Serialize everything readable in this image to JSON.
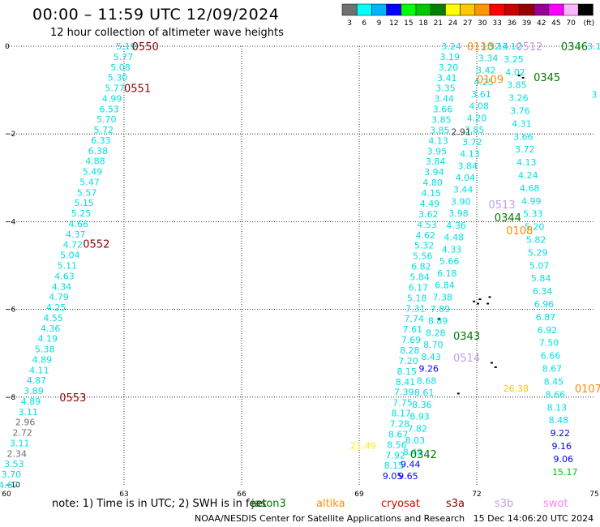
{
  "header": {
    "title": "00:00 – 11:59 UTC 12/09/2024",
    "subtitle": "12 hour collection of altimeter wave heights"
  },
  "legend": {
    "colors": [
      "#707070",
      "#00ffff",
      "#00b4ff",
      "#0000ff",
      "#00ff00",
      "#00c800",
      "#008000",
      "#ffff00",
      "#ffc800",
      "#ff9600",
      "#ff0000",
      "#c80000",
      "#960000",
      "#960096",
      "#ff00ff",
      "#ffb4ff",
      "#000000"
    ],
    "labels": [
      "3",
      "6",
      "9",
      "12",
      "15",
      "18",
      "21",
      "24",
      "27",
      "30",
      "33",
      "36",
      "39",
      "42",
      "45",
      "70",
      "(ft)"
    ]
  },
  "note": {
    "text": "note:  1) Time is in UTC; 2) SWH is in feet",
    "satellites": [
      {
        "name": "jason3",
        "color": "#007a00"
      },
      {
        "name": "altika",
        "color": "#ff8c00"
      },
      {
        "name": "cryosat",
        "color": "#e00000"
      },
      {
        "name": "s3a",
        "color": "#8b0000"
      },
      {
        "name": "s3b",
        "color": "#c0a0e8"
      },
      {
        "name": "swot",
        "color": "#ff80ff"
      }
    ]
  },
  "footer": {
    "credit": "NOAA/NESDIS Center for Satellite Applications and Research",
    "timestamp": "15 Dec 14:06:20 UTC 2024"
  },
  "chart_data": {
    "type": "scatter",
    "title": "00:00 – 11:59 UTC 12/09/2024",
    "xlim": [
      60,
      75
    ],
    "ylim": [
      -10,
      0
    ],
    "xticks": [
      "60",
      "63",
      "66",
      "69",
      "72",
      "75"
    ],
    "yticks": [
      "0",
      "−2",
      "−4",
      "−6",
      "−8",
      "−10"
    ],
    "grid": true,
    "units": "ft",
    "tracks": [
      {
        "name": "track-60-63",
        "start": [
          63.05,
          0.0
        ],
        "end": [
          60.05,
          -10.0
        ],
        "values": [
          "5.19",
          "5.77",
          "5.08",
          "5.30",
          "5.77",
          "4.99",
          "6.53",
          "5.70",
          "5.72",
          "6.33",
          "6.38",
          "4.88",
          "5.49",
          "5.47",
          "5.57",
          "5.15",
          "5.25",
          "4.66",
          "4.37",
          "4.72",
          "5.04",
          "5.11",
          "4.63",
          "4.34",
          "4.79",
          "4.25",
          "4.55",
          "4.36",
          "4.19",
          "5.38",
          "4.89",
          "4.11",
          "4.87",
          "3.89",
          "4.89",
          "3.11",
          "2.96",
          "2.72",
          "3.11",
          "2.34",
          "3.53",
          "3.70",
          "4.67"
        ],
        "colors": [
          "#00e0e0",
          "#00e0e0",
          "#00e0e0",
          "#00e0e0",
          "#00e0e0",
          "#00e0e0",
          "#00e0e0",
          "#00e0e0",
          "#00e0e0",
          "#00e0e0",
          "#00e0e0",
          "#00e0e0",
          "#00e0e0",
          "#00e0e0",
          "#00e0e0",
          "#00e0e0",
          "#00e0e0",
          "#00e0e0",
          "#00e0e0",
          "#00e0e0",
          "#00e0e0",
          "#00e0e0",
          "#00e0e0",
          "#00e0e0",
          "#00e0e0",
          "#00e0e0",
          "#00e0e0",
          "#00e0e0",
          "#00e0e0",
          "#00e0e0",
          "#00e0e0",
          "#00e0e0",
          "#00e0e0",
          "#00e0e0",
          "#00e0e0",
          "#00e0e0",
          "#707070",
          "#707070",
          "#00e0e0",
          "#707070",
          "#00e0e0",
          "#00e0e0",
          "#00e0e0"
        ]
      },
      {
        "name": "track-71-bend",
        "start": [
          71.35,
          0.0
        ],
        "end": [
          69.85,
          -9.8
        ],
        "values": [
          "3.24",
          "3.19",
          "3.20",
          "3.41",
          "3.35",
          "3.44",
          "3.66",
          "3.85",
          "3.85",
          "4.13",
          "3.95",
          "3.84",
          "3.94",
          "4.80",
          "4.15",
          "4.49",
          "3.62",
          "4.53",
          "4.62",
          "5.32",
          "5.56",
          "6.82",
          "5.84",
          "6.17",
          "5.18",
          "7.31",
          "7.74",
          "7.61",
          "7.69",
          "8.28",
          "7.20",
          "8.15",
          "8.41",
          "7.39",
          "7.75",
          "8.17",
          "7.28",
          "8.67",
          "8.56",
          "7.92",
          "8.15",
          "9.05"
        ],
        "colors": [
          "#00e0e0",
          "#00e0e0",
          "#00e0e0",
          "#00e0e0",
          "#00e0e0",
          "#00e0e0",
          "#00e0e0",
          "#00e0e0",
          "#00e0e0",
          "#00e0e0",
          "#00e0e0",
          "#00e0e0",
          "#00e0e0",
          "#00e0e0",
          "#00e0e0",
          "#00e0e0",
          "#00e0e0",
          "#00e0e0",
          "#00e0e0",
          "#00e0e0",
          "#00e0e0",
          "#00e0e0",
          "#00e0e0",
          "#00e0e0",
          "#00e0e0",
          "#00e0e0",
          "#00e0e0",
          "#00e0e0",
          "#00e0e0",
          "#00e0e0",
          "#00e0e0",
          "#00e0e0",
          "#00e0e0",
          "#00e0e0",
          "#00e0e0",
          "#00e0e0",
          "#00e0e0",
          "#00e0e0",
          "#00e0e0",
          "#00e0e0",
          "#00e0e0",
          "#0000ff"
        ]
      },
      {
        "name": "track-72-down",
        "start": [
          72.35,
          0.0
        ],
        "end": [
          70.25,
          -9.8
        ],
        "values": [
          "3.32",
          "3.34",
          "3.42",
          "4.25",
          "3.61",
          "4.08",
          "4.20",
          "3.85",
          "3.72",
          "4.13",
          "3.84",
          "4.04",
          "3.44",
          "3.90",
          "3.98",
          "4.36",
          "4.48",
          "4.33",
          "5.66",
          "6.18",
          "6.84",
          "7.38",
          "7.89",
          "8.89",
          "8.28",
          "8.70",
          "8.43",
          "9.26",
          "8.68",
          "8.61",
          "8.36",
          "8.93",
          "7.82",
          "8.03",
          "8.49",
          "9.44",
          "9.65"
        ],
        "colors": [
          "#00e0e0",
          "#00e0e0",
          "#00e0e0",
          "#00e0e0",
          "#00e0e0",
          "#00e0e0",
          "#00e0e0",
          "#00e0e0",
          "#00e0e0",
          "#00e0e0",
          "#00e0e0",
          "#00e0e0",
          "#00e0e0",
          "#00e0e0",
          "#00e0e0",
          "#00e0e0",
          "#00e0e0",
          "#00e0e0",
          "#00e0e0",
          "#00e0e0",
          "#00e0e0",
          "#00e0e0",
          "#00e0e0",
          "#00e0e0",
          "#00e0e0",
          "#00e0e0",
          "#00e0e0",
          "#0000ff",
          "#00e0e0",
          "#00e0e0",
          "#00e0e0",
          "#00e0e0",
          "#00e0e0",
          "#00e0e0",
          "#00e0e0",
          "#0000ff",
          "#0000ff"
        ]
      },
      {
        "name": "track-72-up",
        "start": [
          72.9,
          0.0
        ],
        "end": [
          74.25,
          -9.7
        ],
        "values": [
          "3.12",
          "3.25",
          "4.02",
          "3.85",
          "3.26",
          "3.76",
          "4.31",
          "3.66",
          "3.72",
          "4.13",
          "4.24",
          "4.68",
          "4.99",
          "5.33",
          "5.20",
          "5.82",
          "5.29",
          "5.07",
          "5.84",
          "6.34",
          "6.96",
          "6.87",
          "6.92",
          "7.50",
          "6.66",
          "8.67",
          "8.45",
          "8.66",
          "8.13",
          "8.48",
          "9.22",
          "9.16",
          "9.06",
          "15.17"
        ],
        "colors": [
          "#00e0e0",
          "#00e0e0",
          "#00e0e0",
          "#00e0e0",
          "#00e0e0",
          "#00e0e0",
          "#00e0e0",
          "#00e0e0",
          "#00e0e0",
          "#00e0e0",
          "#00e0e0",
          "#00e0e0",
          "#00e0e0",
          "#00e0e0",
          "#00e0e0",
          "#00e0e0",
          "#00e0e0",
          "#00e0e0",
          "#00e0e0",
          "#00e0e0",
          "#00e0e0",
          "#00e0e0",
          "#00e0e0",
          "#00e0e0",
          "#00e0e0",
          "#00e0e0",
          "#00e0e0",
          "#00e0e0",
          "#00e0e0",
          "#00e0e0",
          "#0000ff",
          "#0000ff",
          "#0000ff",
          "#00c800"
        ]
      }
    ],
    "extra_values": [
      {
        "text": "2.91",
        "x": 71.6,
        "y": -1.95,
        "color": "#404040"
      },
      {
        "text": "21.49",
        "x": 69.1,
        "y": -9.1,
        "color": "#ffee00"
      },
      {
        "text": "26.38",
        "x": 73.0,
        "y": -7.8,
        "color": "#ffc800"
      },
      {
        "text": "5.14",
        "x": 72.55,
        "y": 0.0,
        "color": "#00e0e0"
      },
      {
        "text": "3.1",
        "x": 75.0,
        "y": 0.0,
        "color": "#00e0e0"
      },
      {
        "text": "3",
        "x": 75.0,
        "y": -1.1,
        "color": "#00e0e0"
      }
    ],
    "time_labels": [
      {
        "text": "0550",
        "x": 63.2,
        "y": 0.0,
        "sat": "s3a"
      },
      {
        "text": "0551",
        "x": 63.0,
        "y": -0.95,
        "sat": "s3a"
      },
      {
        "text": "0552",
        "x": 61.95,
        "y": -4.5,
        "sat": "s3a"
      },
      {
        "text": "0553",
        "x": 61.35,
        "y": -8.0,
        "sat": "s3a"
      },
      {
        "text": "0110",
        "x": 71.75,
        "y": 0.0,
        "sat": "altika"
      },
      {
        "text": "0109",
        "x": 72.0,
        "y": -0.75,
        "sat": "altika"
      },
      {
        "text": "0108",
        "x": 72.75,
        "y": -4.2,
        "sat": "altika"
      },
      {
        "text": "0107",
        "x": 74.5,
        "y": -7.8,
        "sat": "altika"
      },
      {
        "text": "0512",
        "x": 73.0,
        "y": 0.0,
        "sat": "s3b"
      },
      {
        "text": "0513",
        "x": 72.3,
        "y": -3.6,
        "sat": "s3b"
      },
      {
        "text": "0514",
        "x": 71.4,
        "y": -7.1,
        "sat": "s3b"
      },
      {
        "text": "0346",
        "x": 74.15,
        "y": 0.0,
        "sat": "jason3"
      },
      {
        "text": "0345",
        "x": 73.45,
        "y": -0.7,
        "sat": "jason3"
      },
      {
        "text": "0344",
        "x": 72.45,
        "y": -3.9,
        "sat": "jason3"
      },
      {
        "text": "0343",
        "x": 71.4,
        "y": -6.6,
        "sat": "jason3"
      },
      {
        "text": "0342",
        "x": 70.3,
        "y": -9.3,
        "sat": "jason3"
      }
    ]
  }
}
